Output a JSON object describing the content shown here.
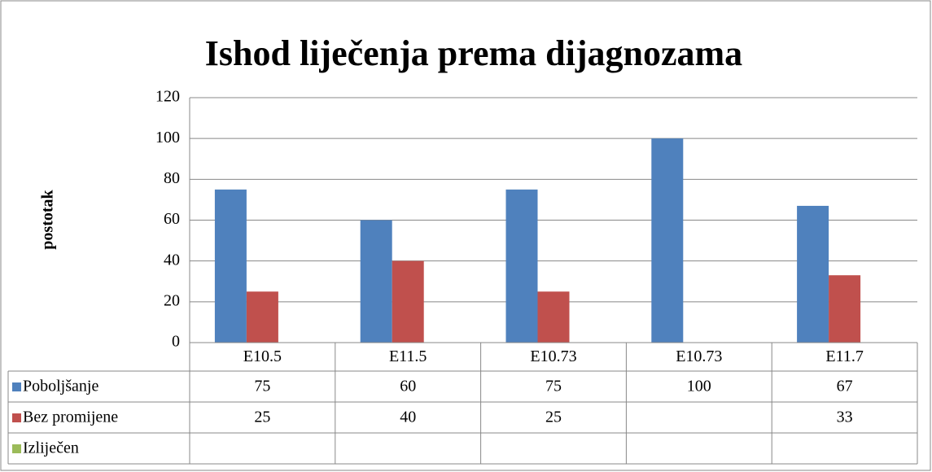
{
  "chart_data": {
    "type": "bar",
    "title": "Ishod liječenja prema dijagnozama",
    "y_label": "postotak",
    "categories": [
      "E10.5",
      "E11.5",
      "E10.73",
      "E10.73",
      "E11.7"
    ],
    "series": [
      {
        "name": "Poboljšanje",
        "color": "#4f81bd",
        "values": [
          75,
          60,
          75,
          100,
          67
        ]
      },
      {
        "name": "Bez promijene",
        "color": "#c0504d",
        "values": [
          25,
          40,
          25,
          null,
          33
        ]
      },
      {
        "name": "Izliječen",
        "color": "#9bbb59",
        "values": [
          null,
          null,
          null,
          null,
          null
        ]
      }
    ],
    "ylim": [
      0,
      120
    ],
    "yticks": [
      0,
      20,
      40,
      60,
      80,
      100,
      120
    ],
    "grid": true,
    "data_table": true
  }
}
